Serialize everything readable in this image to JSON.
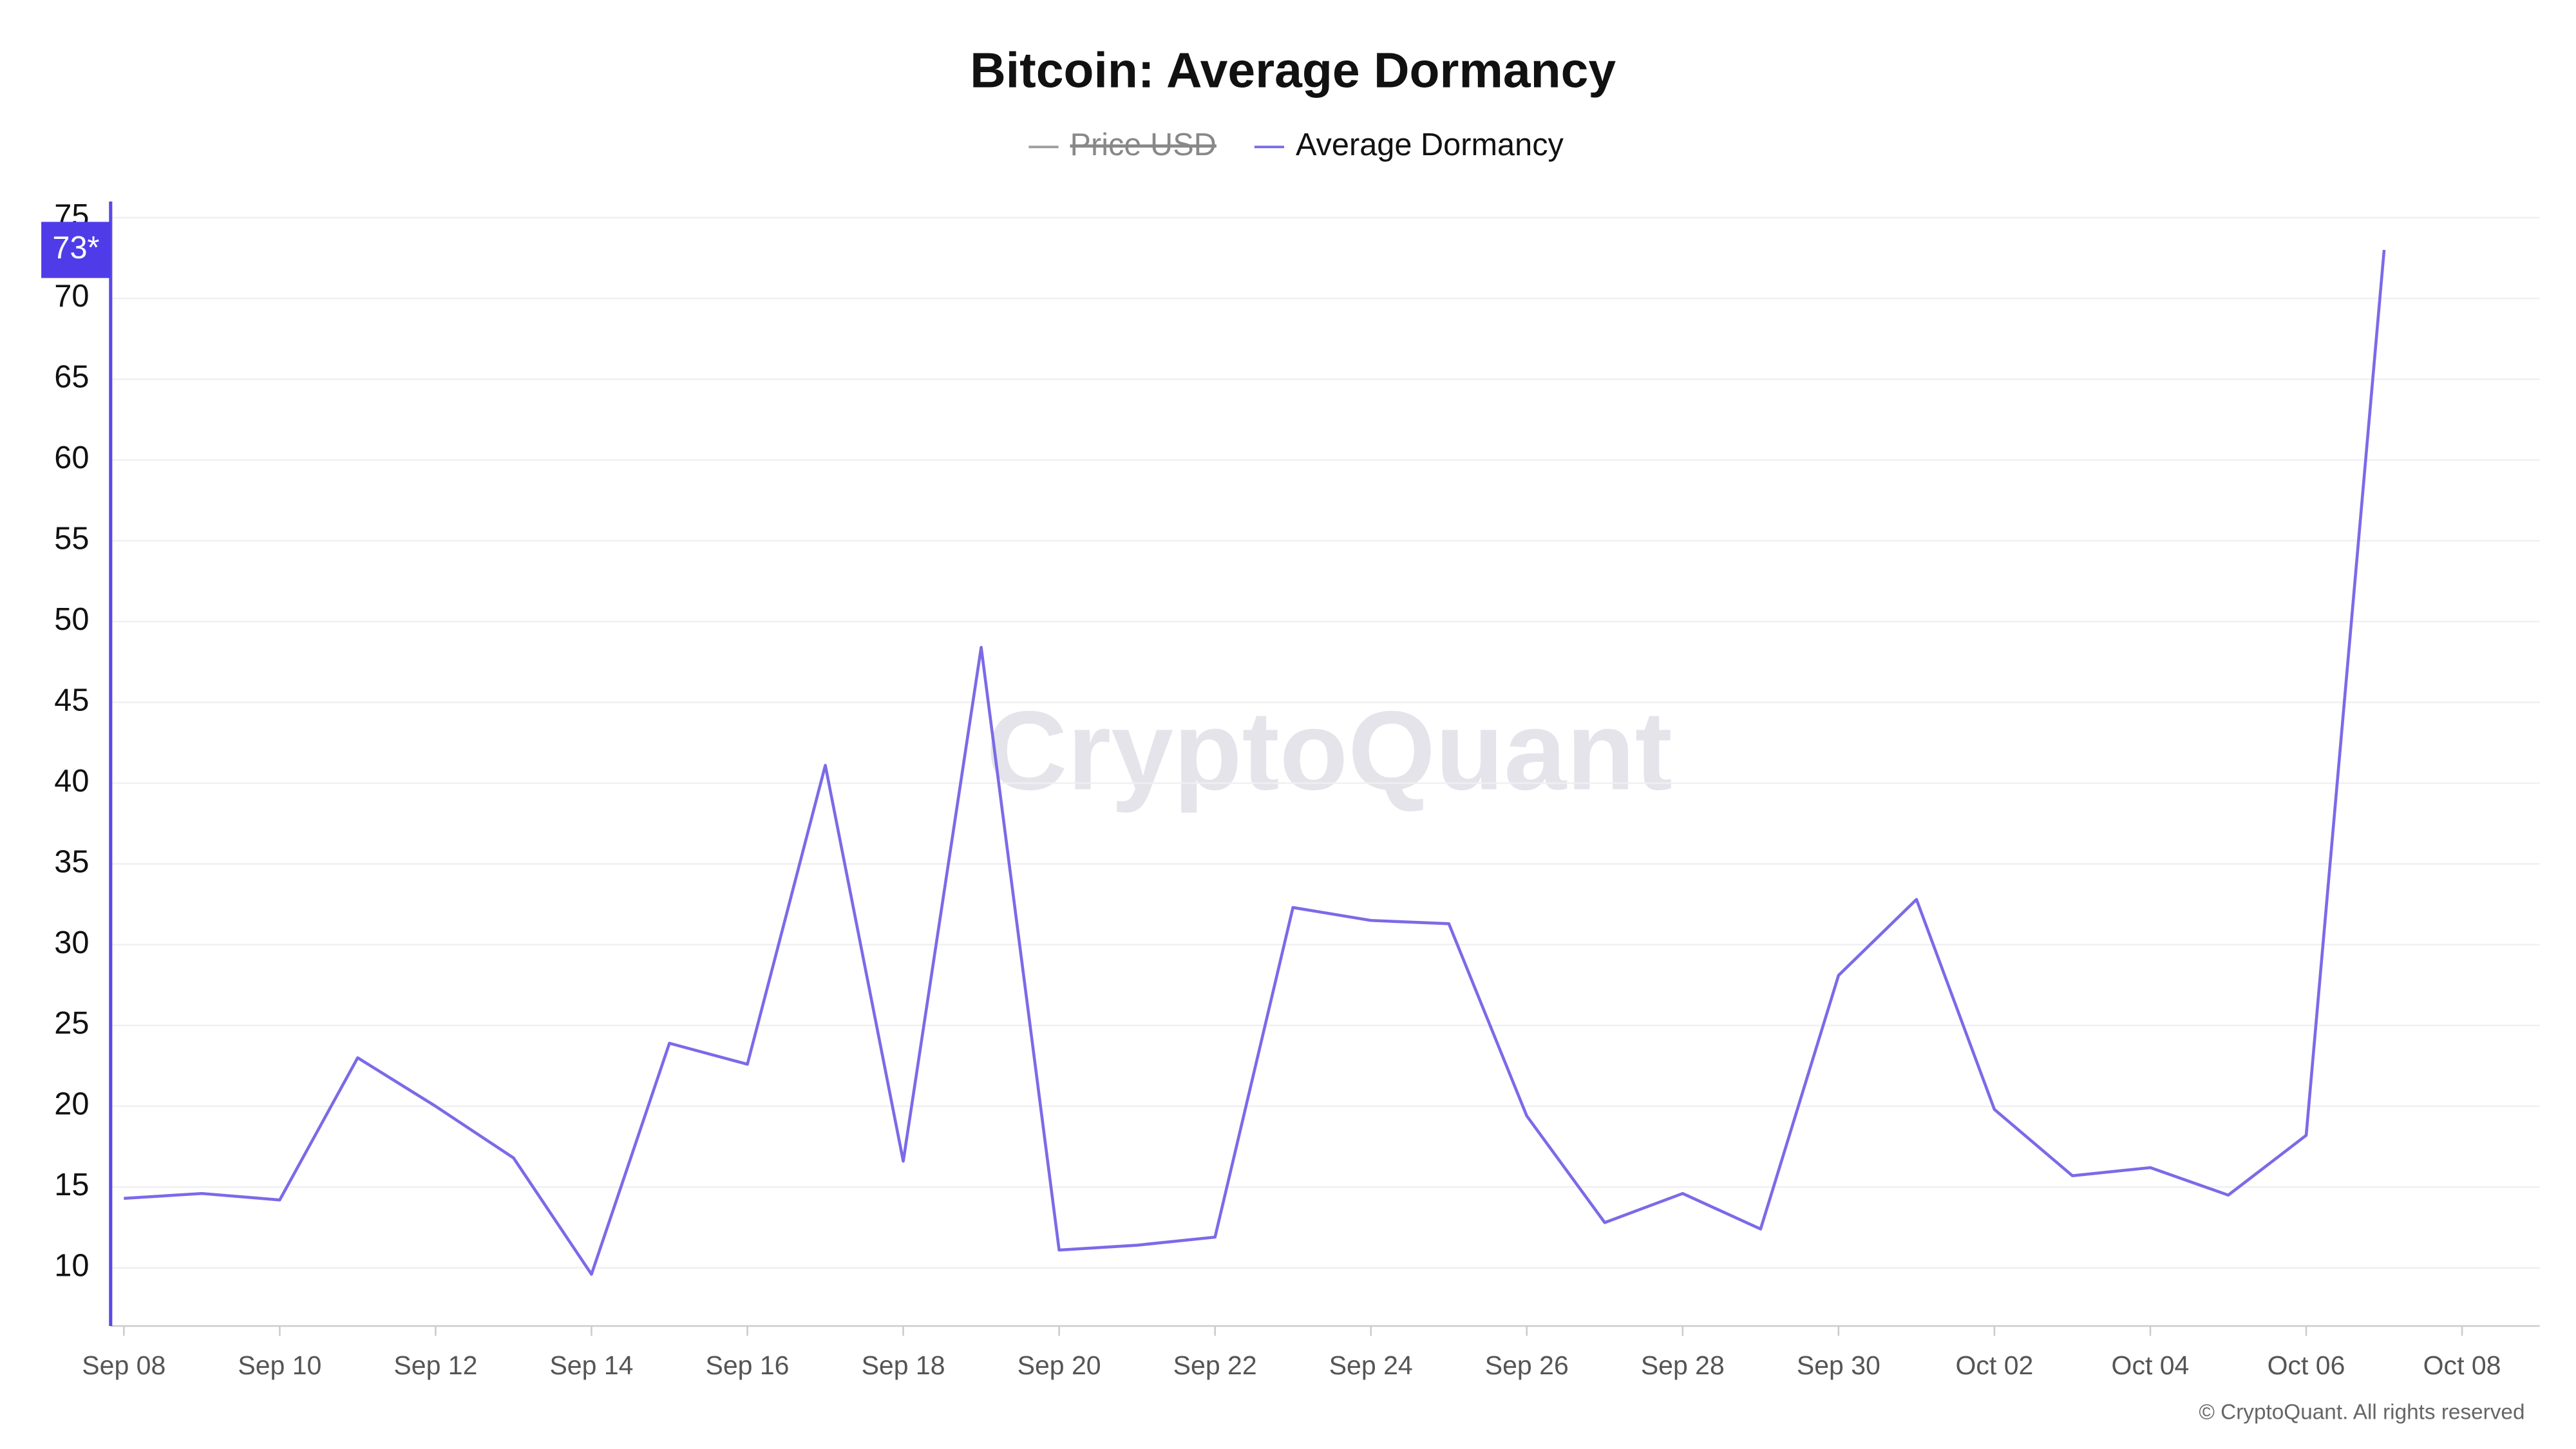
{
  "chart_data": {
    "type": "line",
    "title": "Bitcoin: Average Dormancy",
    "categories": [
      "Sep 08",
      null,
      "Sep 10",
      null,
      "Sep 12",
      null,
      "Sep 14",
      null,
      "Sep 16",
      null,
      "Sep 18",
      null,
      "Sep 20",
      null,
      "Sep 22",
      null,
      "Sep 24",
      null,
      "Sep 26",
      null,
      "Sep 28",
      null,
      "Sep 30",
      null,
      "Oct 02",
      null,
      "Oct 04",
      null,
      "Oct 06",
      null,
      "Oct 08"
    ],
    "series": [
      {
        "name": "Price USD",
        "color": "#9e9e9e",
        "visible": false
      },
      {
        "name": "Average Dormancy",
        "color": "#7b6ae8",
        "values": [
          14.3,
          14.6,
          14.2,
          23.0,
          20.0,
          16.8,
          9.6,
          23.9,
          22.6,
          41.1,
          16.6,
          48.4,
          11.1,
          11.4,
          11.9,
          32.3,
          31.5,
          31.3,
          19.4,
          12.8,
          14.6,
          12.4,
          28.1,
          32.8,
          19.8,
          15.7,
          16.2,
          14.5,
          18.2,
          73.0,
          null
        ]
      }
    ],
    "current_value": {
      "value": 73.0,
      "label": "73*"
    },
    "ylim": [
      6.4,
      76
    ],
    "yticks": [
      10,
      15,
      20,
      25,
      30,
      35,
      40,
      45,
      50,
      55,
      60,
      65,
      70,
      75
    ],
    "grid": true,
    "watermark": "CryptoQuant",
    "copyright": "© CryptoQuant. All rights reserved"
  }
}
